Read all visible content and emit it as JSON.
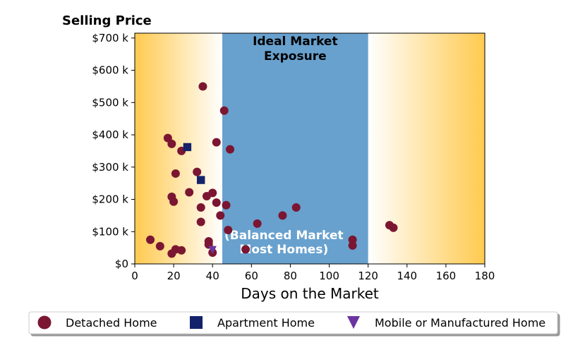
{
  "chart_data": {
    "type": "scatter",
    "title": "Selling Price",
    "xlabel": "Days on the Market",
    "ylabel": "",
    "xlim": [
      0,
      180
    ],
    "ylim": [
      0,
      715000
    ],
    "x_ticks": [
      0,
      20,
      40,
      60,
      80,
      100,
      120,
      140,
      160,
      180
    ],
    "y_ticks": [
      0,
      100000,
      200000,
      300000,
      400000,
      500000,
      600000,
      700000
    ],
    "y_tick_labels": [
      "$0",
      "$100 k",
      "$200 k",
      "$300 k",
      "$400 k",
      "$500 k",
      "$600 k",
      "$700 k"
    ],
    "grid": false,
    "legend_position": "bottom",
    "bands": [
      {
        "from": 0,
        "to": 45,
        "style": "gradient",
        "color": "#ffca4f"
      },
      {
        "from": 45,
        "to": 120,
        "style": "solid",
        "color": "#68a1ce",
        "label_top": [
          "Ideal Market",
          "Exposure"
        ],
        "label_bottom": [
          "(Balanced Market",
          "Most Homes)"
        ]
      },
      {
        "from": 120,
        "to": 180,
        "style": "gradient",
        "color": "#ffca4f"
      }
    ],
    "series": [
      {
        "name": "Detached Home",
        "marker": "circle",
        "color": "#7b1632",
        "points": [
          [
            35,
            550000
          ],
          [
            46,
            475000
          ],
          [
            17,
            390000
          ],
          [
            19,
            372000
          ],
          [
            42,
            377000
          ],
          [
            49,
            355000
          ],
          [
            24,
            350000
          ],
          [
            21,
            280000
          ],
          [
            32,
            285000
          ],
          [
            28,
            222000
          ],
          [
            40,
            220000
          ],
          [
            37,
            210000
          ],
          [
            19,
            208000
          ],
          [
            20,
            193000
          ],
          [
            42,
            190000
          ],
          [
            47,
            182000
          ],
          [
            34,
            175000
          ],
          [
            44,
            150000
          ],
          [
            34,
            130000
          ],
          [
            48,
            105000
          ],
          [
            63,
            125000
          ],
          [
            76,
            150000
          ],
          [
            83,
            175000
          ],
          [
            131,
            120000
          ],
          [
            133,
            112000
          ],
          [
            8,
            75000
          ],
          [
            13,
            55000
          ],
          [
            21,
            45000
          ],
          [
            24,
            42000
          ],
          [
            19,
            32000
          ],
          [
            38,
            70000
          ],
          [
            38,
            60000
          ],
          [
            40,
            35000
          ],
          [
            57,
            45000
          ],
          [
            112,
            75000
          ],
          [
            112,
            57000
          ]
        ]
      },
      {
        "name": "Apartment Home",
        "marker": "square",
        "color": "#13226a",
        "points": [
          [
            27,
            362000
          ],
          [
            34,
            260000
          ]
        ]
      },
      {
        "name": "Mobile or Manufactured Home",
        "marker": "triangle-down",
        "color": "#6b35a1",
        "points": [
          [
            40,
            43000
          ]
        ]
      }
    ]
  }
}
